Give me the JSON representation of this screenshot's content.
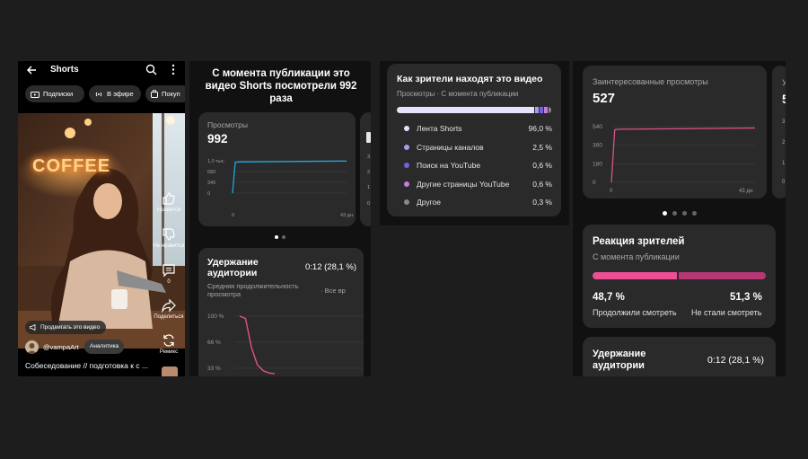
{
  "shorts_player": {
    "title": "Shorts",
    "chips": [
      "Подписки",
      "В эфире",
      "Покуп"
    ],
    "scene_sign": "COFFEE",
    "actions": [
      {
        "label": "Нравится",
        "icon": "thumb-up-icon"
      },
      {
        "label": "Не нравится",
        "icon": "thumb-down-icon"
      },
      {
        "label": "0",
        "icon": "comment-icon"
      },
      {
        "label": "Поделиться",
        "icon": "share-icon"
      },
      {
        "label": "Ремикс",
        "icon": "remix-icon"
      }
    ],
    "promote_label": "Продвигать это видео",
    "channel": "@vampaArt",
    "analytics_label": "Аналитика",
    "video_title": "Собеседование // подготовка к с ..."
  },
  "views_panel": {
    "headline": "С момента публикации это видео Shorts посмотрели 992 раза",
    "card": {
      "label": "Просмотры",
      "value": "992",
      "y_ticks": [
        "1,0 тыс.",
        "680",
        "340",
        "0"
      ],
      "x_start": "0",
      "x_end": "43 дн."
    },
    "next_card_ticks": [
      "3",
      "2",
      "1",
      "0"
    ],
    "retention": {
      "title": "Удержание аудитории",
      "value": "0:12 (28,1 %)",
      "subtitle": "Средняя продолжительность просмотра",
      "filter": "Все вр",
      "y_ticks": [
        "100 %",
        "66 %",
        "33 %"
      ]
    }
  },
  "traffic_sources": {
    "title": "Как зрители находят это видео",
    "subtitle": "Просмотры · С момента публикации",
    "items": [
      {
        "label": "Лента Shorts",
        "pct": "96,0 %",
        "share": 96.0,
        "color": "#e5e3fb"
      },
      {
        "label": "Страницы каналов",
        "pct": "2,5 %",
        "share": 2.5,
        "color": "#a89bf0"
      },
      {
        "label": "Поиск на YouTube",
        "pct": "0,6 %",
        "share": 0.6,
        "color": "#7b5ee0"
      },
      {
        "label": "Другие страницы YouTube",
        "pct": "0,6 %",
        "share": 0.6,
        "color": "#c77be0"
      },
      {
        "label": "Другое",
        "pct": "0,3 %",
        "share": 0.3,
        "color": "#8a8a8a"
      }
    ]
  },
  "engaged_panel": {
    "card": {
      "label": "Заинтересованные просмотры",
      "value": "527",
      "y_ticks": [
        "540",
        "360",
        "180",
        "0"
      ],
      "x_start": "0",
      "x_end": "43 дн."
    },
    "next_card_ticks": [
      "3",
      "2",
      "1",
      "0"
    ],
    "next_card_label": "У",
    "next_card_value": "5",
    "reaction": {
      "title": "Реакция зрителей",
      "subtitle": "С момента публикации",
      "continued_pct": "48,7 %",
      "continued_label": "Продолжили смотреть",
      "stopped_pct": "51,3 %",
      "stopped_label": "Не стали смотреть",
      "continued_share": 48.7
    },
    "retention": {
      "title": "Удержание аудитории",
      "value": "0:12 (28,1 %)"
    }
  },
  "chart_data": [
    {
      "type": "line",
      "title": "Просмотры",
      "x": [
        0,
        1,
        2,
        43
      ],
      "y": [
        0,
        950,
        965,
        992
      ],
      "xlabel": "дн.",
      "ylim": [
        0,
        1000
      ],
      "x_tick_labels": [
        "0",
        "43 дн."
      ],
      "y_tick_labels": [
        "0",
        "340",
        "680",
        "1,0 тыс."
      ]
    },
    {
      "type": "line",
      "title": "Удержание аудитории",
      "x": [
        0,
        0.05,
        0.1,
        0.15,
        0.2,
        0.25,
        0.3
      ],
      "y": [
        100,
        97,
        60,
        38,
        30,
        27,
        26
      ],
      "ylabel": "%",
      "ylim": [
        0,
        110
      ],
      "y_tick_labels": [
        "33 %",
        "66 %",
        "100 %"
      ]
    },
    {
      "type": "line",
      "title": "Заинтересованные просмотры",
      "x": [
        0,
        1,
        2,
        43
      ],
      "y": [
        0,
        510,
        515,
        527
      ],
      "xlabel": "дн.",
      "ylim": [
        0,
        560
      ],
      "x_tick_labels": [
        "0",
        "43 дн."
      ],
      "y_tick_labels": [
        "0",
        "180",
        "360",
        "540"
      ]
    }
  ]
}
